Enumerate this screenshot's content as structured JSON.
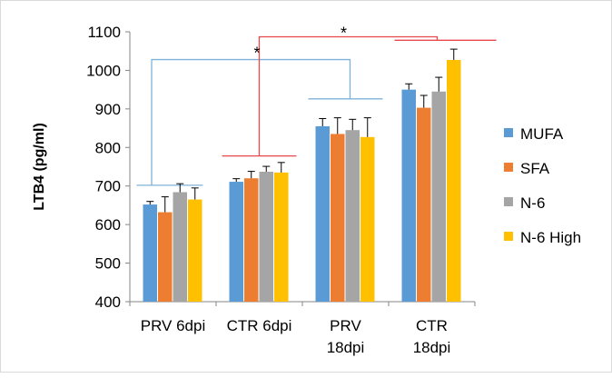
{
  "chart_data": {
    "type": "bar",
    "ylabel": "LTB4 (pg/ml)",
    "ylim": [
      400,
      1100
    ],
    "yticks": [
      400,
      500,
      600,
      700,
      800,
      900,
      1000,
      1100
    ],
    "categories": [
      [
        "PRV  6dpi"
      ],
      [
        "CTR  6dpi"
      ],
      [
        "PRV",
        "18dpi"
      ],
      [
        "CTR",
        "18dpi"
      ]
    ],
    "series": [
      {
        "name": "MUFA",
        "color": "#5b9bd5",
        "values": [
          652,
          711,
          855,
          950
        ],
        "errors": [
          8,
          8,
          20,
          15
        ]
      },
      {
        "name": "SFA",
        "color": "#ed7d31",
        "values": [
          632,
          720,
          835,
          903
        ],
        "errors": [
          40,
          18,
          42,
          32
        ]
      },
      {
        "name": "N-6",
        "color": "#a5a5a5",
        "values": [
          684,
          737,
          845,
          945
        ],
        "errors": [
          22,
          14,
          28,
          37
        ]
      },
      {
        "name": "N-6 High",
        "color": "#ffc000",
        "values": [
          665,
          735,
          827,
          1027
        ],
        "errors": [
          30,
          26,
          50,
          28
        ]
      }
    ],
    "legend_position": "right",
    "grid": false,
    "annotations": [
      {
        "text": "*",
        "between": [
          "PRV  6dpi",
          "PRV 18dpi"
        ],
        "color": "#7fb2d9"
      },
      {
        "text": "*",
        "between": [
          "CTR  6dpi",
          "CTR 18dpi"
        ],
        "color": "#e8474b"
      }
    ]
  }
}
